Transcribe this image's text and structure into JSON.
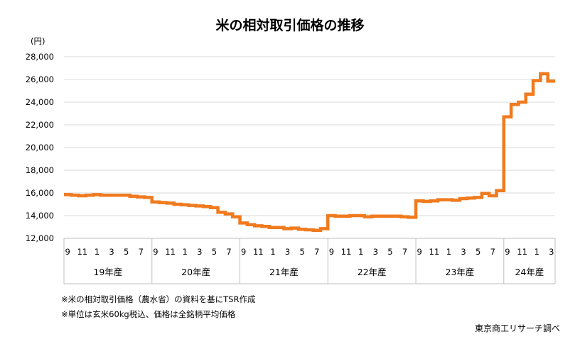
{
  "chart_data": {
    "type": "line",
    "title": "米の相対取引価格の推移",
    "y_unit": "(円)",
    "ylim": [
      12000,
      28000
    ],
    "yticks": [
      12000,
      14000,
      16000,
      18000,
      20000,
      22000,
      24000,
      26000,
      28000
    ],
    "ytick_labels": [
      "12,000",
      "14,000",
      "16,000",
      "18,000",
      "20,000",
      "22,000",
      "24,000",
      "26,000",
      "28,000"
    ],
    "grid": true,
    "line_color": "#F07A1E",
    "x_tick_labels": [
      "9",
      "11",
      "1",
      "3",
      "5",
      "7",
      "9",
      "11",
      "1",
      "3",
      "5",
      "7",
      "9",
      "11",
      "1",
      "3",
      "5",
      "7",
      "9",
      "11",
      "1",
      "3",
      "5",
      "7",
      "9",
      "11",
      "1",
      "3",
      "5",
      "7",
      "9",
      "11",
      "1",
      "3"
    ],
    "groups": [
      {
        "label": "19年産",
        "months": 12
      },
      {
        "label": "20年産",
        "months": 12
      },
      {
        "label": "21年産",
        "months": 12
      },
      {
        "label": "22年産",
        "months": 12
      },
      {
        "label": "23年産",
        "months": 12
      },
      {
        "label": "24年産",
        "months": 7
      }
    ],
    "series": [
      {
        "values": [
          15850,
          15800,
          15750,
          15800,
          15850,
          15800,
          15800,
          15800,
          15800,
          15700,
          15650,
          15600,
          15200,
          15150,
          15100,
          15000,
          14950,
          14900,
          14850,
          14800,
          14700,
          14300,
          14150,
          13900,
          13350,
          13200,
          13100,
          13050,
          12950,
          12950,
          12850,
          12900,
          12800,
          12750,
          12700,
          12850,
          14000,
          13950,
          13950,
          14000,
          14000,
          13900,
          13950,
          13950,
          13950,
          13950,
          13900,
          13850,
          15300,
          15250,
          15300,
          15400,
          15400,
          15350,
          15500,
          15550,
          15600,
          15950,
          15750,
          16200,
          22700,
          23800,
          24000,
          24700,
          25900,
          26500,
          25850
        ]
      }
    ]
  },
  "notes": [
    "※米の相対取引価格（農水省）の資料を基にTSR作成",
    "※単位は玄米60kg税込、価格は全銘柄平均価格"
  ],
  "source": "東京商工リサーチ調べ"
}
